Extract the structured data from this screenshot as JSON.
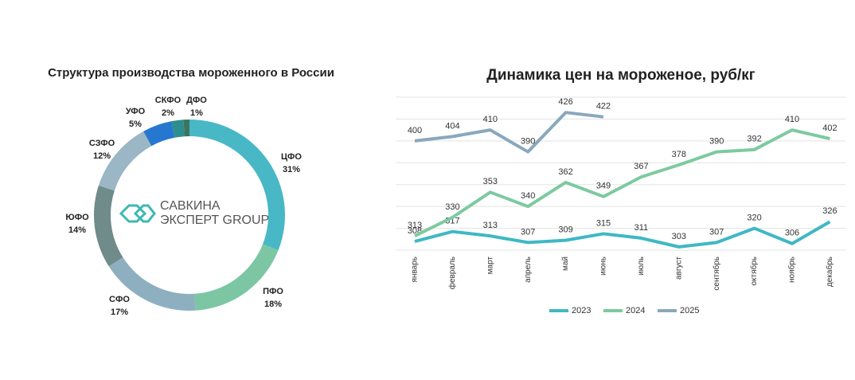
{
  "chart_data": [
    {
      "type": "pie",
      "title": "Структура производства мороженного в России",
      "categories": [
        "ЦФО",
        "ПФО",
        "СФО",
        "ЮФО",
        "СЗФО",
        "УФО",
        "СКФО",
        "ДФО"
      ],
      "values": [
        31,
        18,
        17,
        14,
        12,
        5,
        2,
        1
      ],
      "value_labels": [
        "31%",
        "18%",
        "17%",
        "14%",
        "12%",
        "5%",
        "2%",
        "1%"
      ],
      "colors": [
        "#48b7c6",
        "#7cc6a4",
        "#8eafbf",
        "#6f8b8a",
        "#9bb6c5",
        "#2677cf",
        "#2d8e8e",
        "#3d7462"
      ],
      "annotations": [
        "САВКИНА",
        "ЭКСПЕРТ GROUP"
      ]
    },
    {
      "type": "line",
      "title": "Динамика цен на мороженое, руб/кг",
      "categories": [
        "январь",
        "февраль",
        "март",
        "апрель",
        "май",
        "июнь",
        "июль",
        "август",
        "сентябрь",
        "октябрь",
        "ноябрь",
        "декабрь"
      ],
      "series": [
        {
          "name": "2023",
          "color": "#3fb8c4",
          "values": [
            308,
            317,
            313,
            307,
            309,
            315,
            311,
            303,
            307,
            320,
            306,
            326
          ]
        },
        {
          "name": "2024",
          "color": "#7dcaa0",
          "values": [
            313,
            330,
            353,
            340,
            362,
            349,
            367,
            378,
            390,
            392,
            410,
            402
          ]
        },
        {
          "name": "2025",
          "color": "#8aa8bc",
          "values": [
            400,
            404,
            410,
            390,
            426,
            422,
            null,
            null,
            null,
            null,
            null,
            null
          ]
        }
      ],
      "ylim": [
        300,
        440
      ],
      "yticks": [
        300,
        320,
        340,
        360,
        380,
        400,
        420,
        440
      ],
      "grid": true,
      "legend": "bottom"
    }
  ]
}
